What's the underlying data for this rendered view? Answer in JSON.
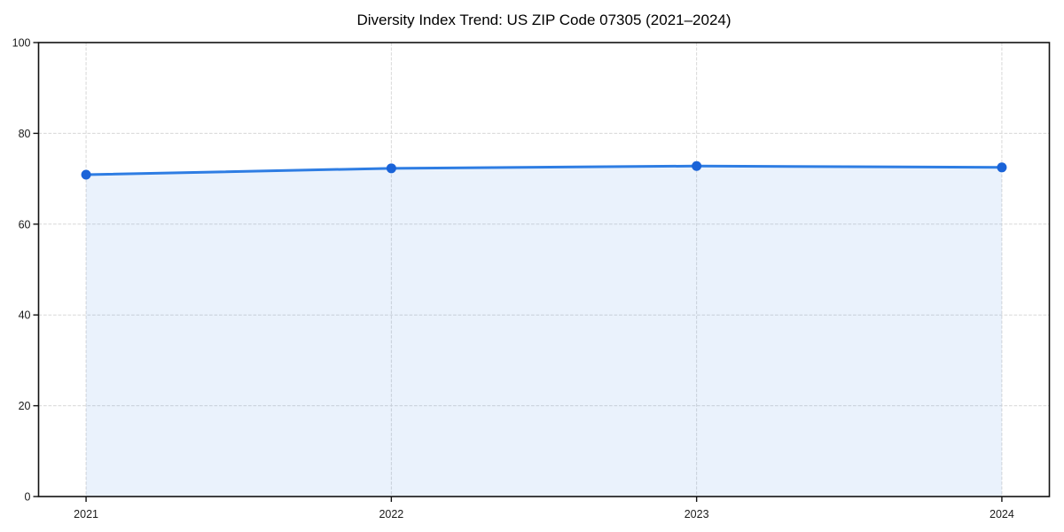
{
  "chart_data": {
    "type": "area",
    "title": "Diversity Index Trend: US ZIP Code 07305 (2021–2024)",
    "categories": [
      "2021",
      "2022",
      "2023",
      "2024"
    ],
    "series": [
      {
        "name": "Diversity Index",
        "values": [
          70.9,
          72.3,
          72.8,
          72.5
        ]
      }
    ],
    "xlabel": "",
    "ylabel": "",
    "ylim": [
      0,
      100
    ],
    "yticks": [
      0,
      20,
      40,
      60,
      80,
      100
    ],
    "grid": true,
    "grid_style": "dashed",
    "legend": "none",
    "colors": {
      "line": "#2e7de3",
      "marker": "#1a63d8",
      "fill": "rgba(46, 125, 227, 0.10)",
      "grid": "#d8d8d8",
      "spine": "#121212",
      "tick": "#121212",
      "tick_label": "#1a1a1a",
      "title": "#000000",
      "background": "#ffffff"
    }
  }
}
